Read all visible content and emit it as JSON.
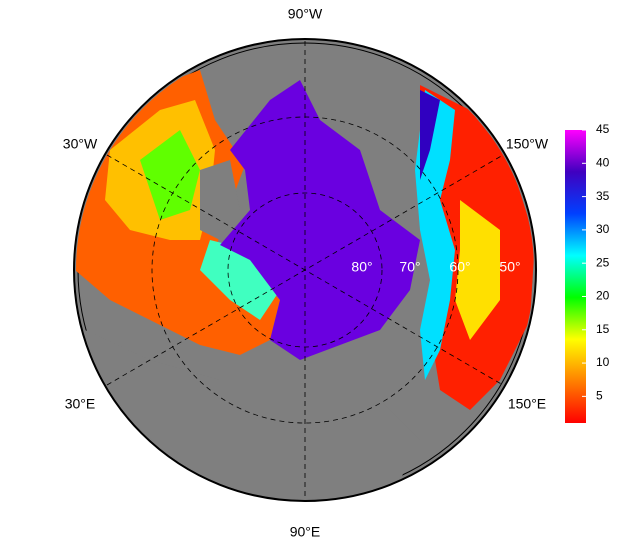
{
  "map": {
    "longitude_labels": [
      "90°W",
      "30°W",
      "150°W",
      "30°E",
      "150°E",
      "90°E"
    ],
    "latitude_labels": [
      "80°",
      "70°",
      "60°",
      "50°"
    ]
  },
  "colorbar": {
    "lim": [
      1,
      45
    ],
    "ticks": [
      5,
      10,
      15,
      20,
      25,
      30,
      35,
      40,
      45
    ],
    "colors": [
      "#ff0000",
      "#ff8000",
      "#ffff00",
      "#00ff00",
      "#00ffff",
      "#0040ff",
      "#4000c0",
      "#ff00ff"
    ]
  }
}
